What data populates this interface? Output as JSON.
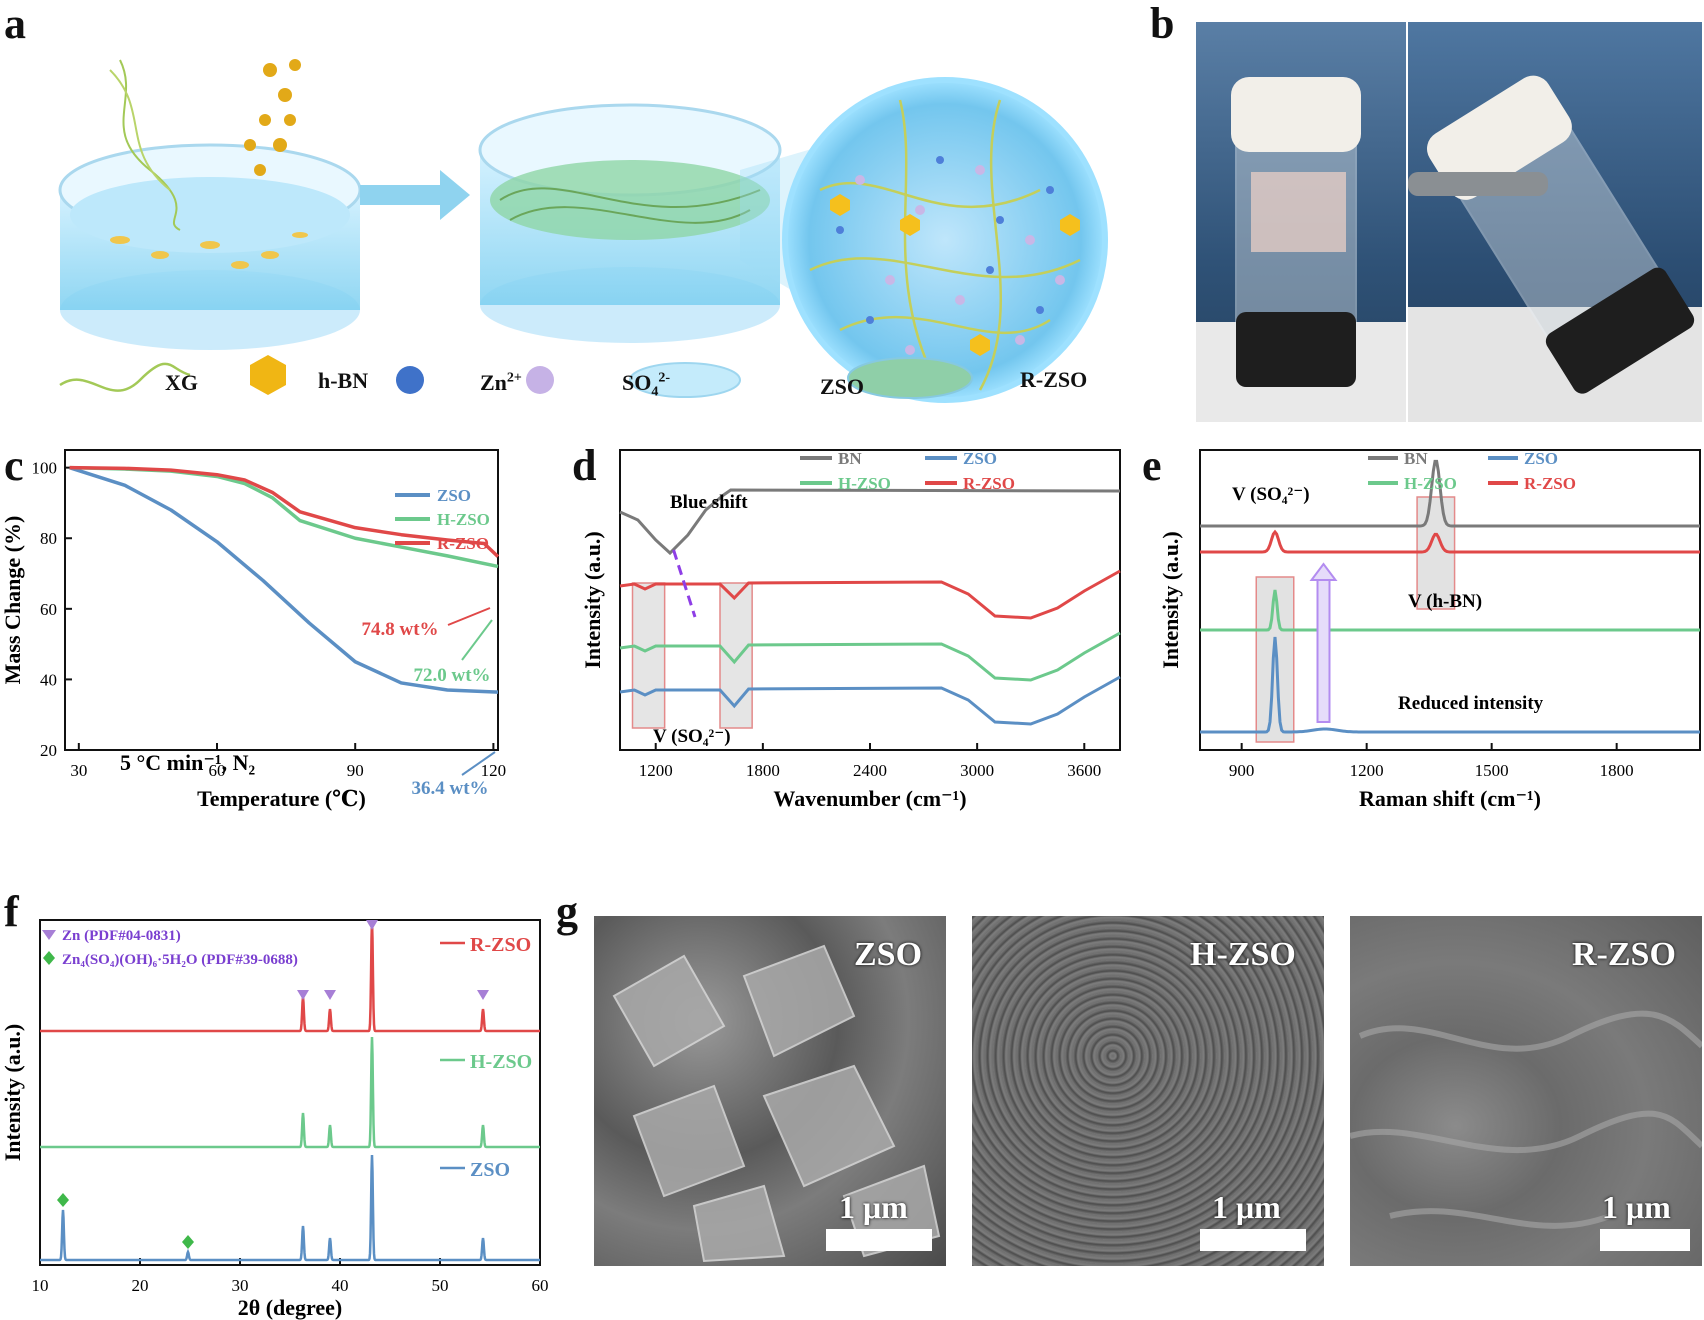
{
  "panels": {
    "a": {
      "letter": "a",
      "legend": [
        {
          "key": "xg",
          "label": "XG"
        },
        {
          "key": "hbn",
          "label": "h-BN"
        },
        {
          "key": "zn",
          "label": "Zn",
          "sup": "2+"
        },
        {
          "key": "so4",
          "label": "SO",
          "sub": "4",
          "sup": "2-"
        },
        {
          "key": "zso",
          "label": "ZSO"
        },
        {
          "key": "rzso",
          "label": "R-ZSO"
        }
      ]
    },
    "b": {
      "letter": "b"
    },
    "c": {
      "letter": "c"
    },
    "d": {
      "letter": "d"
    },
    "e": {
      "letter": "e"
    },
    "f": {
      "letter": "f"
    },
    "g": {
      "letter": "g",
      "images": [
        {
          "label": "ZSO",
          "scale": "1 μm"
        },
        {
          "label": "H-ZSO",
          "scale": "1 μm"
        },
        {
          "label": "R-ZSO",
          "scale": "1 μm"
        }
      ]
    }
  },
  "colors": {
    "zso": "#5b8fc4",
    "hzso": "#6cc98c",
    "rzso": "#e04848",
    "bn": "#7a7a7a",
    "green_marker": "#3fb84a",
    "purple_marker": "#a77fd6"
  },
  "chart_data": [
    {
      "panel": "c",
      "type": "line",
      "xlabel": "Temperature (℃)",
      "ylabel": "Mass Change (%)",
      "xlim": [
        27,
        121
      ],
      "ylim": [
        20,
        105
      ],
      "xticks": [
        30,
        60,
        90,
        120
      ],
      "yticks": [
        20,
        40,
        60,
        80,
        100
      ],
      "condition": "5 °C min⁻¹, N₂",
      "series": [
        {
          "name": "ZSO",
          "color": "#5b8fc4",
          "x": [
            28,
            40,
            50,
            60,
            70,
            80,
            90,
            100,
            110,
            121
          ],
          "y": [
            100,
            95,
            88,
            79,
            68,
            56,
            45,
            39,
            37,
            36.4
          ]
        },
        {
          "name": "H-ZSO",
          "color": "#6cc98c",
          "x": [
            28,
            40,
            50,
            60,
            66,
            72,
            78,
            90,
            100,
            110,
            121
          ],
          "y": [
            100,
            99.6,
            99,
            97.5,
            95.5,
            91.5,
            85,
            80,
            77.5,
            75,
            72
          ]
        },
        {
          "name": "R-ZSO",
          "color": "#e04848",
          "x": [
            28,
            40,
            50,
            60,
            66,
            72,
            78,
            90,
            100,
            110,
            118,
            121
          ],
          "y": [
            100,
            99.8,
            99.3,
            98,
            96.5,
            93,
            87.5,
            83,
            81,
            79.5,
            78.5,
            74.8
          ]
        }
      ],
      "annotations": [
        {
          "text": "74.8 wt%",
          "color": "#e04848"
        },
        {
          "text": "72.0 wt%",
          "color": "#6cc98c"
        },
        {
          "text": "36.4 wt%",
          "color": "#5b8fc4"
        }
      ]
    },
    {
      "panel": "d",
      "type": "line",
      "xlabel": "Wavenumber (cm⁻¹)",
      "ylabel": "Intensity (a.u.)",
      "xlim": [
        1000,
        3800
      ],
      "xticks": [
        1200,
        1800,
        2400,
        3000,
        3600
      ],
      "series_names": [
        "BN",
        "ZSO",
        "H-ZSO",
        "R-ZSO"
      ],
      "annotations": [
        "Blue shift",
        "V (SO₄²⁻)"
      ]
    },
    {
      "panel": "e",
      "type": "line",
      "xlabel": "Raman shift  (cm⁻¹)",
      "ylabel": "Intensity (a.u.)",
      "xlim": [
        800,
        2000
      ],
      "xticks": [
        900,
        1200,
        1500,
        1800
      ],
      "series_names": [
        "BN",
        "ZSO",
        "H-ZSO",
        "R-ZSO"
      ],
      "peaks": {
        "so4": 980,
        "hbn": 1366
      },
      "annotations": [
        "V (SO₄²⁻)",
        "V (h-BN)",
        "Reduced intensity"
      ]
    },
    {
      "panel": "f",
      "type": "line",
      "xlabel": "2θ (degree)",
      "ylabel": "Intensity (a.u.)",
      "xlim": [
        10,
        60
      ],
      "xticks": [
        10,
        20,
        30,
        40,
        50,
        60
      ],
      "series": [
        {
          "name": "R-ZSO",
          "color": "#e04848",
          "peaks": [
            36.3,
            39.0,
            43.2,
            54.3
          ]
        },
        {
          "name": "H-ZSO",
          "color": "#6cc98c",
          "peaks": [
            36.3,
            39.0,
            43.2,
            54.3
          ]
        },
        {
          "name": "ZSO",
          "color": "#5b8fc4",
          "peaks": [
            12.3,
            24.8,
            36.3,
            39.0,
            43.2,
            54.3
          ]
        }
      ],
      "legend": [
        {
          "marker": "triangle",
          "text": "Zn (PDF#04-0831)"
        },
        {
          "marker": "diamond",
          "text": "Zn₄(SO₄)(OH)₆·5H₂O (PDF#39-0688)"
        }
      ]
    }
  ]
}
